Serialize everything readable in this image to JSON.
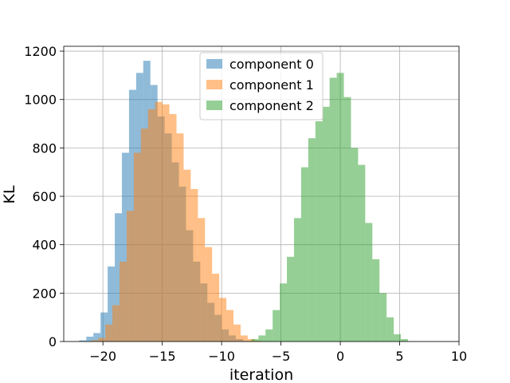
{
  "chart_data": {
    "type": "bar",
    "subtype": "histogram",
    "xlabel": "iteration",
    "ylabel": "KL",
    "xlim": [
      -23.3,
      10
    ],
    "ylim": [
      0,
      1220
    ],
    "xticks": [
      -20,
      -15,
      -10,
      -5,
      0,
      5,
      10
    ],
    "yticks": [
      0,
      200,
      400,
      600,
      800,
      1000,
      1200
    ],
    "grid": true,
    "legend_position": "upper-center",
    "series": [
      {
        "name": "component 0",
        "color": "#1f77b4",
        "alpha": 0.5,
        "bin_start": -22.0,
        "bin_width": 0.6,
        "counts": [
          5,
          20,
          35,
          120,
          310,
          530,
          780,
          1040,
          1110,
          1160,
          1060,
          930,
          860,
          740,
          640,
          460,
          330,
          240,
          160,
          110,
          50,
          25,
          10,
          3
        ]
      },
      {
        "name": "component 1",
        "color": "#ff7f0e",
        "alpha": 0.5,
        "bin_start": -21.0,
        "bin_width": 0.6,
        "counts": [
          5,
          15,
          70,
          150,
          330,
          540,
          780,
          880,
          960,
          990,
          980,
          940,
          860,
          710,
          630,
          510,
          390,
          280,
          180,
          130,
          70,
          25,
          10,
          3
        ]
      },
      {
        "name": "component 2",
        "color": "#2ca02c",
        "alpha": 0.5,
        "bin_start": -7.5,
        "bin_width": 0.6,
        "counts": [
          10,
          25,
          50,
          130,
          240,
          350,
          510,
          720,
          840,
          910,
          970,
          1090,
          1110,
          1010,
          800,
          730,
          490,
          340,
          200,
          100,
          30,
          10
        ]
      }
    ]
  }
}
